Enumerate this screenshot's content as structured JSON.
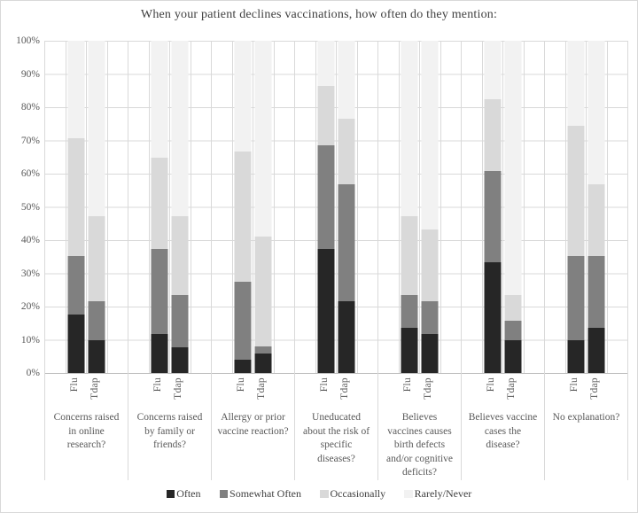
{
  "chart_data": {
    "type": "bar",
    "subtype": "100-percent-stacked-column",
    "title": "When your patient declines vaccinations,  how often do they mention:",
    "xlabel": "",
    "ylabel": "",
    "ylim": [
      0,
      100
    ],
    "grid": true,
    "legend_position": "bottom",
    "y_ticks": [
      "100%",
      "90%",
      "80%",
      "70%",
      "60%",
      "50%",
      "40%",
      "30%",
      "20%",
      "10%",
      "0%"
    ],
    "bar_labels": [
      "Flu",
      "Tdap"
    ],
    "series": [
      {
        "name": "Often",
        "color": "#262626"
      },
      {
        "name": "Somewhat Often",
        "color": "#808080"
      },
      {
        "name": "Occasionally",
        "color": "#d9d9d9"
      },
      {
        "name": "Rarely/Never",
        "color": "#f2f2f2"
      }
    ],
    "groups": [
      {
        "label": "Concerns raised in online research?",
        "label_lines": [
          "Concerns raised",
          "in online",
          "research?"
        ],
        "bars": [
          {
            "name": "Flu",
            "values": [
              17.6,
              17.7,
              35.3,
              29.4
            ]
          },
          {
            "name": "Tdap",
            "values": [
              9.8,
              11.8,
              25.5,
              52.9
            ]
          }
        ]
      },
      {
        "label": "Concerns raised by family or friends?",
        "label_lines": [
          "Concerns raised",
          "by family or",
          "friends?"
        ],
        "bars": [
          {
            "name": "Flu",
            "values": [
              11.8,
              25.5,
              27.4,
              35.3
            ]
          },
          {
            "name": "Tdap",
            "values": [
              7.8,
              15.7,
              23.6,
              52.9
            ]
          }
        ]
      },
      {
        "label": "Allergy or prior vaccine reaction?",
        "label_lines": [
          "Allergy or prior",
          "vaccine reaction?"
        ],
        "bars": [
          {
            "name": "Flu",
            "values": [
              3.9,
              23.6,
              39.2,
              33.3
            ]
          },
          {
            "name": "Tdap",
            "values": [
              5.9,
              2.0,
              33.3,
              58.8
            ]
          }
        ]
      },
      {
        "label": "Uneducated about the risk of specific diseases?",
        "label_lines": [
          "Uneducated",
          "about the risk of",
          "specific",
          "diseases?"
        ],
        "bars": [
          {
            "name": "Flu",
            "values": [
              37.3,
              31.3,
              17.7,
              13.7
            ]
          },
          {
            "name": "Tdap",
            "values": [
              21.6,
              35.3,
              19.6,
              23.5
            ]
          }
        ]
      },
      {
        "label": "Believes vaccines causes birth defects and/or cognitive deficits?",
        "label_lines": [
          "Believes",
          "vaccines causes",
          "birth defects",
          "and/or cognitive",
          "deficits?"
        ],
        "bars": [
          {
            "name": "Flu",
            "values": [
              13.7,
              9.8,
              23.6,
              52.9
            ]
          },
          {
            "name": "Tdap",
            "values": [
              11.8,
              9.8,
              21.5,
              56.9
            ]
          }
        ]
      },
      {
        "label": "Believes vaccine cases the disease?",
        "label_lines": [
          "Believes vaccine",
          "cases the",
          "disease?"
        ],
        "bars": [
          {
            "name": "Flu",
            "values": [
              33.3,
              27.5,
              21.6,
              17.6
            ]
          },
          {
            "name": "Tdap",
            "values": [
              9.8,
              5.9,
              7.8,
              76.5
            ]
          }
        ]
      },
      {
        "label": "No explanation?",
        "label_lines": [
          "No explanation?"
        ],
        "bars": [
          {
            "name": "Flu",
            "values": [
              9.8,
              25.5,
              39.2,
              25.5
            ]
          },
          {
            "name": "Tdap",
            "values": [
              13.7,
              21.6,
              21.6,
              43.1
            ]
          }
        ]
      }
    ],
    "colors": {
      "gridline": "#d9d9d9",
      "axis_line": "#bfbfbf",
      "axis_text": "#595959",
      "title_text": "#404040",
      "background": "#ffffff"
    }
  }
}
